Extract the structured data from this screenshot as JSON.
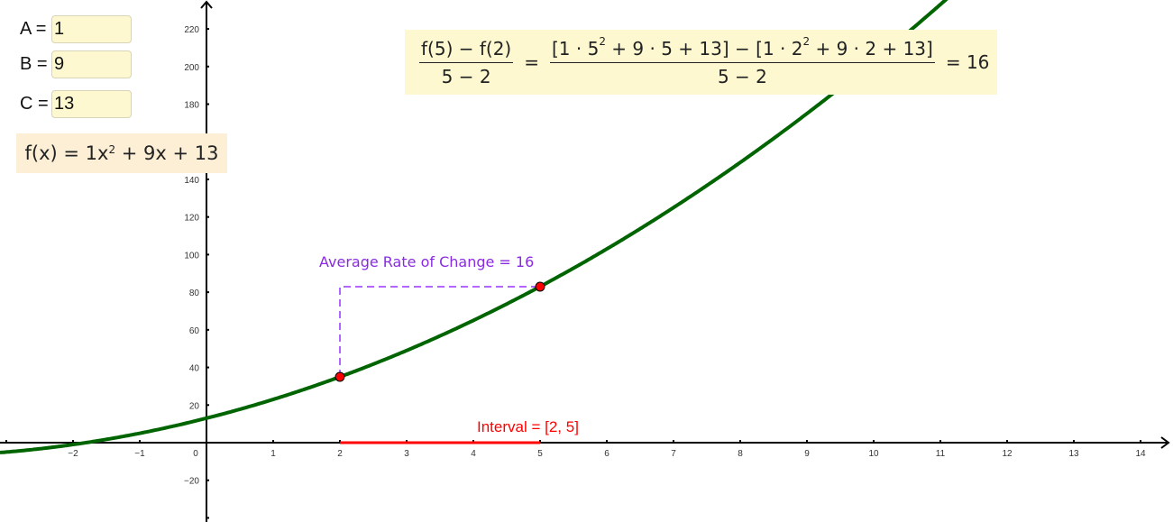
{
  "parameters": [
    {
      "label": "A =",
      "value": "1"
    },
    {
      "label": "B =",
      "value": "9"
    },
    {
      "label": "C =",
      "value": "13"
    }
  ],
  "function": {
    "lhs": "f(x) = 1x",
    "exp": "2",
    "rhs": " + 9x + 13"
  },
  "formula": {
    "left_num": "f(5) − f(2)",
    "left_den": "5 − 2",
    "eq1": "=",
    "right_num_a": "[1 · 5",
    "right_num_a_exp": "2",
    "right_num_b": " + 9 · 5 + 13] − [1 · 2",
    "right_num_b_exp": "2",
    "right_num_c": " + 9 · 2 + 13]",
    "right_den": "5 − 2",
    "result": "= 16"
  },
  "average_rate_label": "Average Rate of Change = 16",
  "interval_label": "Interval = [2, 5]",
  "axes": {
    "x_ticks": [
      "−2",
      "−1",
      "0",
      "1",
      "2",
      "3",
      "4",
      "5",
      "6",
      "7",
      "8",
      "9",
      "10",
      "11",
      "12",
      "13",
      "14"
    ],
    "y_ticks": [
      "220",
      "200",
      "180",
      "160",
      "140",
      "120",
      "100",
      "80",
      "60",
      "40",
      "20",
      "−20"
    ]
  },
  "colors": {
    "curve": "#006400",
    "points": "#ff0000",
    "interval": "#ff0000",
    "rate_dashes": "#9933ff",
    "formula_bg": "#fdf8d0",
    "function_bg": "#fcefd6",
    "input_bg": "#fdf8d0"
  },
  "points": [
    {
      "x": 2,
      "y": 35
    },
    {
      "x": 5,
      "y": 83
    }
  ]
}
